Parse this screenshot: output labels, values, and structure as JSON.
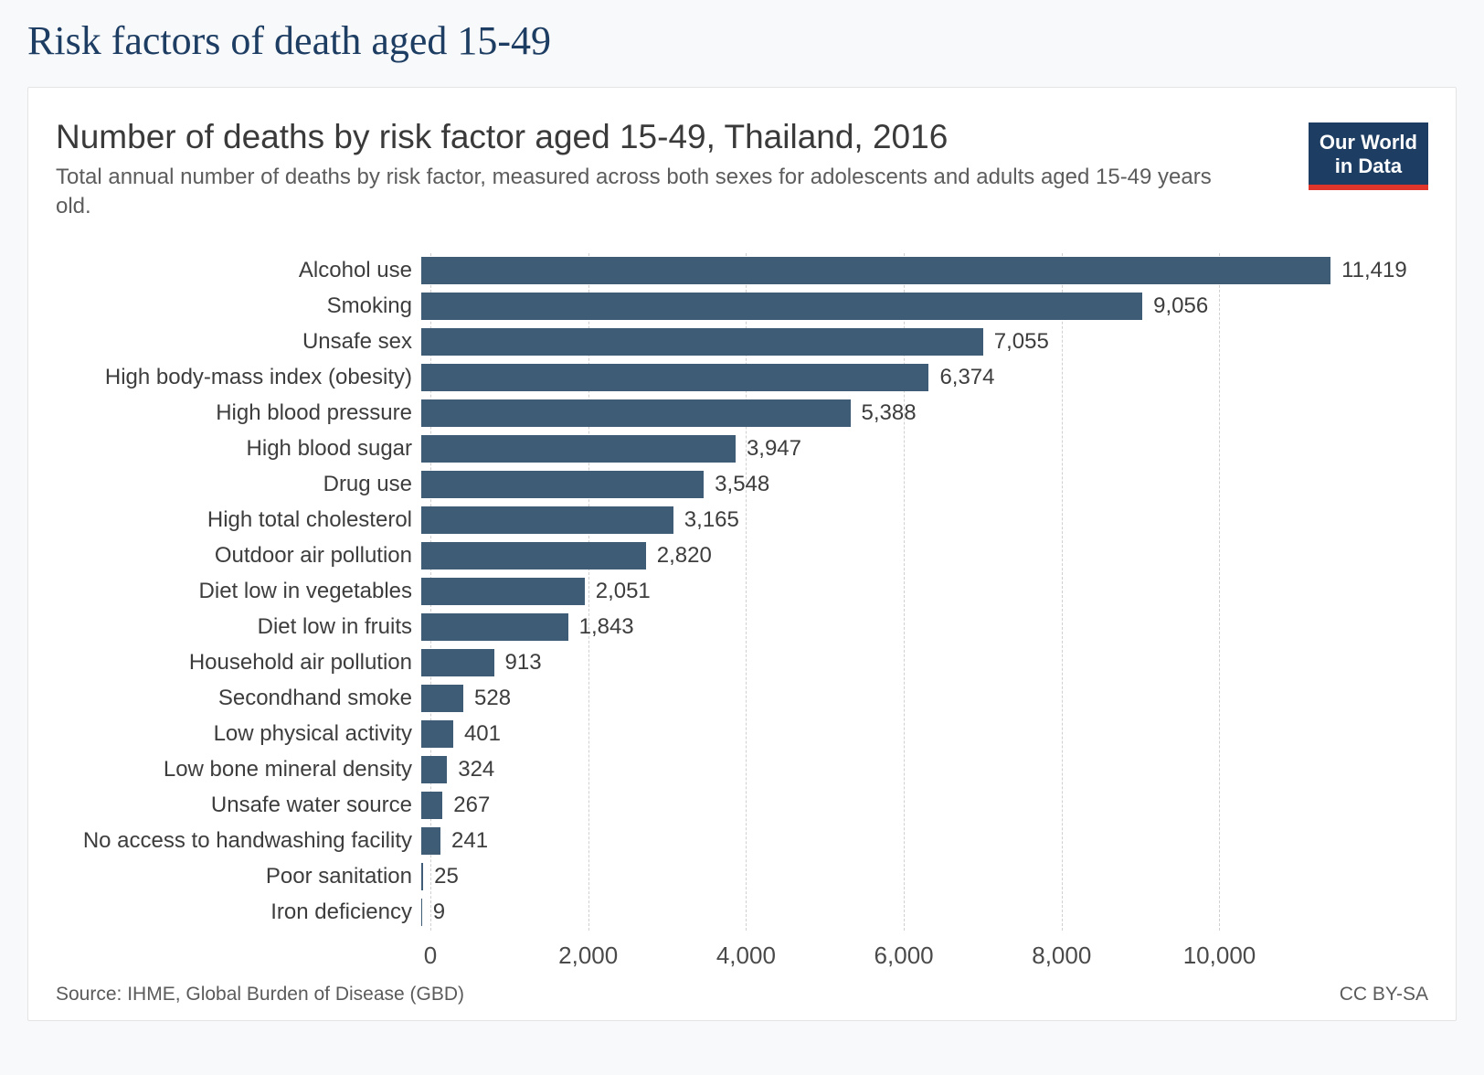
{
  "page": {
    "title": "Risk factors of death aged 15-49"
  },
  "logo": {
    "line1": "Our World",
    "line2": "in Data"
  },
  "footer": {
    "source": "Source: IHME, Global Burden of Disease (GBD)",
    "license": "CC BY-SA"
  },
  "colors": {
    "bar": "#3e5c75",
    "grid": "#d0d0d0",
    "page_title": "#1d3d63",
    "logo_bg": "#1d3d63",
    "logo_accent": "#e0352b"
  },
  "chart_data": {
    "type": "bar",
    "orientation": "horizontal",
    "title": "Number of deaths by risk factor aged 15-49, Thailand, 2016",
    "subtitle": "Total annual number of deaths by risk factor, measured across both sexes for adolescents and adults aged 15-49 years old.",
    "categories": [
      "Alcohol use",
      "Smoking",
      "Unsafe sex",
      "High body-mass index (obesity)",
      "High blood pressure",
      "High blood sugar",
      "Drug use",
      "High total cholesterol",
      "Outdoor air pollution",
      "Diet low in vegetables",
      "Diet low in fruits",
      "Household air pollution",
      "Secondhand smoke",
      "Low physical activity",
      "Low bone mineral density",
      "Unsafe water source",
      "No access to handwashing facility",
      "Poor sanitation",
      "Iron deficiency"
    ],
    "values": [
      11419,
      9056,
      7055,
      6374,
      5388,
      3947,
      3548,
      3165,
      2820,
      2051,
      1843,
      913,
      528,
      401,
      324,
      267,
      241,
      25,
      9
    ],
    "value_labels": [
      "11,419",
      "9,056",
      "7,055",
      "6,374",
      "5,388",
      "3,947",
      "3,548",
      "3,165",
      "2,820",
      "2,051",
      "1,843",
      "913",
      "528",
      "401",
      "324",
      "267",
      "241",
      "25",
      "9"
    ],
    "xlabel": "",
    "ylabel": "",
    "xlim": [
      0,
      12600
    ],
    "xticks": {
      "values": [
        0,
        2000,
        4000,
        6000,
        8000,
        10000
      ],
      "labels": [
        "0",
        "2,000",
        "4,000",
        "6,000",
        "8,000",
        "10,000"
      ]
    },
    "grid": "vertical-dashed",
    "legend": "none",
    "bar_color": "#3e5c75"
  }
}
